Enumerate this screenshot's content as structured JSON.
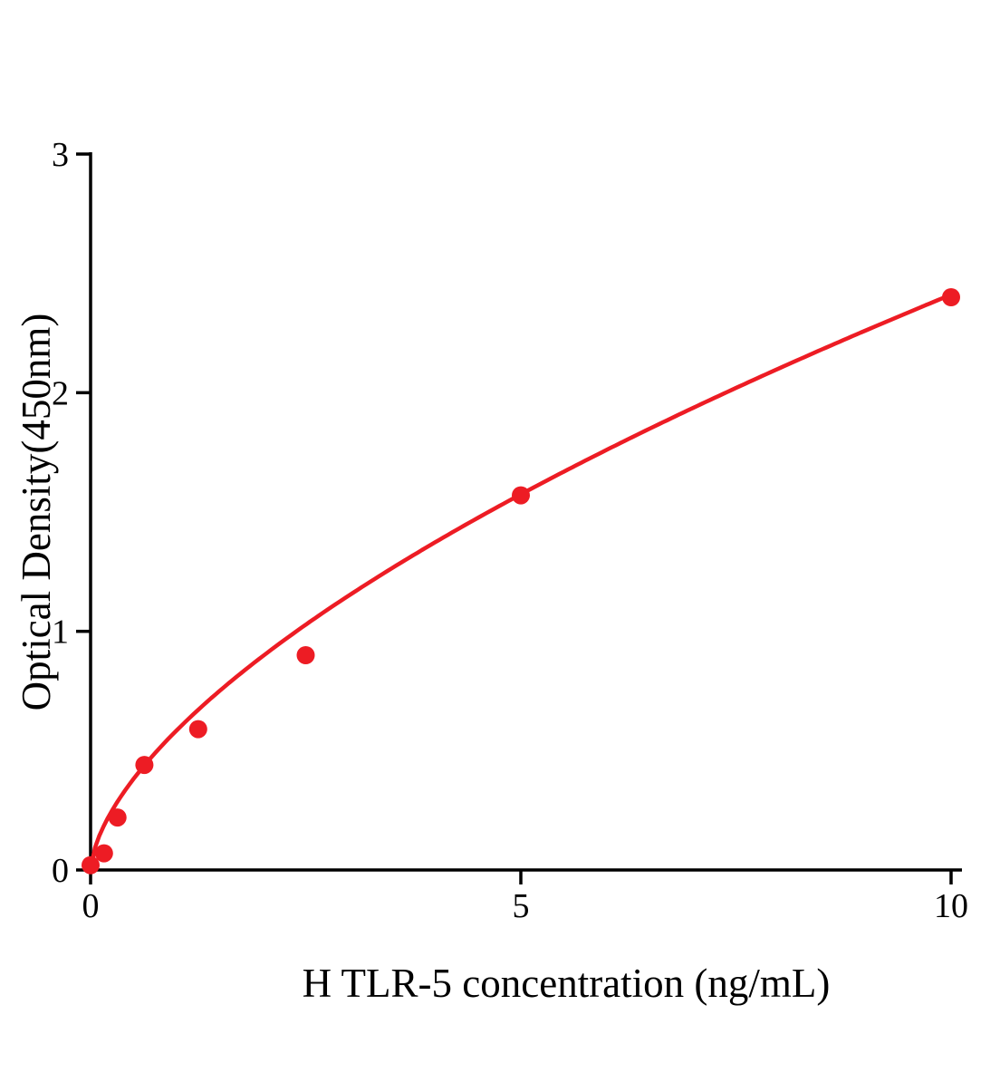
{
  "chart_data": {
    "type": "scatter",
    "title": "",
    "xlabel": "H TLR-5 concentration (ng/mL)",
    "ylabel": "Optical Density(450nm)",
    "xlim": [
      0,
      10.2
    ],
    "ylim": [
      0,
      3
    ],
    "x_ticks": [
      "0",
      "5",
      "10"
    ],
    "x_tick_values": [
      0,
      5,
      10
    ],
    "y_ticks": [
      "0",
      "1",
      "2",
      "3"
    ],
    "y_tick_values": [
      0,
      1,
      2,
      3
    ],
    "grid": false,
    "legend": false,
    "series_color": "#ed1c24",
    "points": [
      {
        "x": 0,
        "y": 0.02
      },
      {
        "x": 0.156,
        "y": 0.07
      },
      {
        "x": 0.313,
        "y": 0.22
      },
      {
        "x": 0.625,
        "y": 0.44
      },
      {
        "x": 1.25,
        "y": 0.59
      },
      {
        "x": 2.5,
        "y": 0.9
      },
      {
        "x": 5,
        "y": 1.57
      },
      {
        "x": 10,
        "y": 2.4
      }
    ],
    "fit_curve": {
      "type": "power",
      "a": 0.585,
      "b": 0.615,
      "x_start": 0,
      "x_end": 10
    }
  }
}
